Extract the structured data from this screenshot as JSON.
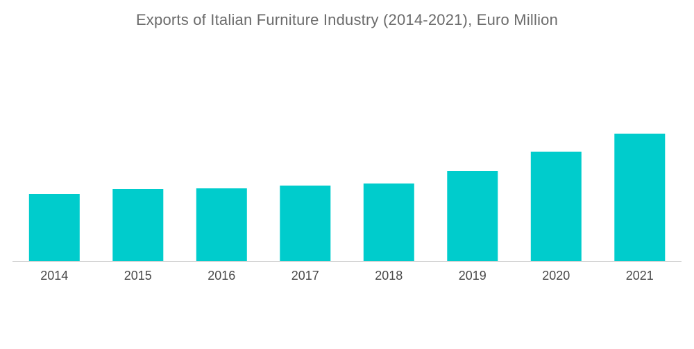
{
  "chart_data": {
    "type": "bar",
    "title": "Exports of Italian Furniture Industry (2014-2021), Euro Million",
    "xlabel": "",
    "ylabel": "",
    "categories": [
      "2014",
      "2015",
      "2016",
      "2017",
      "2018",
      "2019",
      "2020",
      "2021"
    ],
    "values": [
      97,
      104,
      105,
      109,
      112,
      130,
      158,
      184
    ],
    "ylim": [
      0,
      200
    ],
    "grid": false,
    "legend": "none",
    "bar_color": "#00cccc",
    "axis_color": "#cfcfcf"
  }
}
